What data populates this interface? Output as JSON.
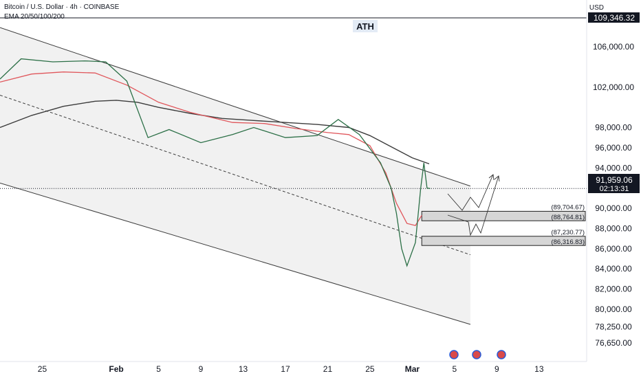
{
  "header": {
    "title": "Bitcoin / U.S. Dollar · 4h · COINBASE",
    "indicator": "EMA 20/50/100/200",
    "currency": "USD"
  },
  "annotations": {
    "ath_label": "ATH",
    "ath_price": "109,346.32",
    "current_price": "91,959.06",
    "countdown": "02:13:31",
    "zones": [
      {
        "top_label": "(89,704.67)",
        "bottom_label": "(88,764.81)",
        "top": 89704.67,
        "bottom": 88764.81
      },
      {
        "top_label": "(87,230.77)",
        "bottom_label": "(86,316.83)",
        "top": 87230.77,
        "bottom": 86316.83
      }
    ]
  },
  "chart_data": {
    "type": "line",
    "y_axis_labels": [
      "106,000.00",
      "102,000.00",
      "98,000.00",
      "96,000.00",
      "94,000.00",
      "90,000.00",
      "88,000.00",
      "86,000.00",
      "84,000.00",
      "82,000.00",
      "80,000.00",
      "78,250.00",
      "76,650.00"
    ],
    "y_axis_values": [
      106000,
      102000,
      98000,
      96000,
      94000,
      90000,
      88000,
      86000,
      84000,
      82000,
      80000,
      78250,
      76650
    ],
    "x_axis_labels": [
      "25",
      "Feb",
      "5",
      "9",
      "13",
      "17",
      "21",
      "25",
      "Mar",
      "5",
      "9",
      "13"
    ],
    "x_axis_days": [
      -7,
      0,
      4,
      8,
      12,
      16,
      20,
      24,
      28,
      32,
      36,
      40
    ],
    "x_range_days": [
      -11.0,
      44.5
    ],
    "series": [
      {
        "values": [
          [
            -11,
            102800
          ],
          [
            -9,
            104800
          ],
          [
            -6,
            104500
          ],
          [
            -3,
            104600
          ],
          [
            -1,
            104500
          ],
          [
            1,
            102600
          ],
          [
            3,
            97000
          ],
          [
            5,
            97800
          ],
          [
            8,
            96500
          ],
          [
            11,
            97300
          ],
          [
            13,
            98000
          ],
          [
            16,
            97000
          ],
          [
            19,
            97200
          ],
          [
            21,
            98800
          ],
          [
            23,
            97300
          ],
          [
            25,
            94500
          ],
          [
            26,
            92000
          ],
          [
            26.5,
            89500
          ],
          [
            27,
            86000
          ],
          [
            27.5,
            84300
          ],
          [
            28.3,
            86600
          ],
          [
            28.8,
            92000
          ],
          [
            29.1,
            94500
          ],
          [
            29.4,
            92000
          ],
          [
            29.7,
            91959
          ]
        ]
      },
      {
        "values": [
          [
            -11,
            102500
          ],
          [
            -8,
            103300
          ],
          [
            -5,
            103500
          ],
          [
            -2,
            103400
          ],
          [
            1,
            102200
          ],
          [
            4,
            100500
          ],
          [
            7,
            99500
          ],
          [
            11,
            98500
          ],
          [
            14,
            98400
          ],
          [
            17,
            97900
          ],
          [
            20,
            97500
          ],
          [
            22,
            97300
          ],
          [
            24,
            96200
          ],
          [
            25.5,
            93500
          ],
          [
            26.5,
            90500
          ],
          [
            27.5,
            88500
          ],
          [
            28.3,
            88300
          ],
          [
            28.9,
            89300
          ]
        ]
      },
      {
        "values": [
          [
            -11,
            98000
          ],
          [
            -8,
            99200
          ],
          [
            -5,
            100100
          ],
          [
            -2,
            100600
          ],
          [
            0,
            100700
          ],
          [
            2,
            100500
          ],
          [
            4,
            100000
          ],
          [
            7,
            99400
          ],
          [
            10,
            98900
          ],
          [
            13,
            98700
          ],
          [
            16,
            98500
          ],
          [
            19,
            98300
          ],
          [
            22,
            98000
          ],
          [
            24,
            97200
          ],
          [
            26,
            96100
          ],
          [
            28,
            95000
          ],
          [
            29.6,
            94400
          ]
        ]
      }
    ],
    "ylim": [
      76000,
      111000
    ],
    "grid": false
  }
}
